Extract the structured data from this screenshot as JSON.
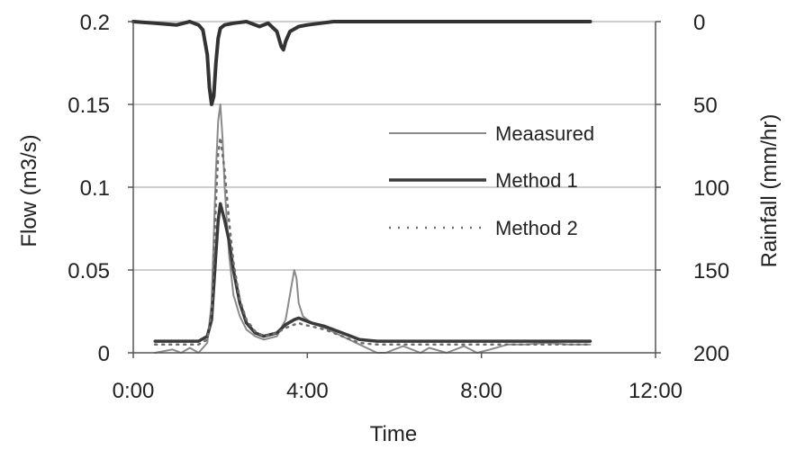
{
  "chart_data": {
    "type": "line",
    "title": "",
    "xlabel": "Time",
    "ylabel_left": "Flow (m3/s)",
    "ylabel_right": "Rainfall (mm/hr)",
    "x_ticks": [
      "0:00",
      "4:00",
      "8:00",
      "12:00"
    ],
    "x_ticks_hours": [
      0,
      4,
      8,
      12
    ],
    "xlim_hours": [
      0,
      12
    ],
    "y_left_ticks": [
      "0",
      "0.05",
      "0.1",
      "0.15",
      "0.2"
    ],
    "y_left_tick_values": [
      0,
      0.05,
      0.1,
      0.15,
      0.2
    ],
    "ylim_left": [
      0,
      0.2
    ],
    "y_right_ticks": [
      "0",
      "50",
      "100",
      "150",
      "200"
    ],
    "y_right_tick_values": [
      0,
      50,
      100,
      150,
      200
    ],
    "ylim_right": [
      0,
      200
    ],
    "y_right_inverted": true,
    "grid": "horizontal",
    "legend_placement": "center-right",
    "colors": {
      "measured": "#8a8a8a",
      "method1": "#3a3a3a",
      "method2": "#6e6e6e",
      "rainfall": "#333333",
      "grid": "#bdbdbd",
      "axis": "#555555"
    },
    "series": [
      {
        "name": "Meaasured",
        "axis": "left",
        "style": "thin",
        "x": [
          0.5,
          0.9,
          1.1,
          1.3,
          1.5,
          1.7,
          1.8,
          1.9,
          1.95,
          2.0,
          2.05,
          2.1,
          2.2,
          2.3,
          2.45,
          2.6,
          2.8,
          3.0,
          3.3,
          3.5,
          3.6,
          3.7,
          3.75,
          3.8,
          3.9,
          4.1,
          4.4,
          4.8,
          5.2,
          5.6,
          5.8,
          6.2,
          6.6,
          6.8,
          7.2,
          7.6,
          7.9,
          8.2,
          8.6,
          9.0,
          9.5,
          10.0,
          10.5
        ],
        "y": [
          0.0,
          0.002,
          0.0,
          0.003,
          0.0,
          0.006,
          0.03,
          0.11,
          0.14,
          0.15,
          0.13,
          0.1,
          0.06,
          0.035,
          0.022,
          0.014,
          0.01,
          0.008,
          0.01,
          0.02,
          0.035,
          0.05,
          0.045,
          0.03,
          0.022,
          0.018,
          0.015,
          0.01,
          0.005,
          0.0,
          0.0,
          0.004,
          0.0,
          0.003,
          0.0,
          0.004,
          0.0,
          0.002,
          0.005,
          0.005,
          0.006,
          0.005,
          0.005
        ]
      },
      {
        "name": "Method 1",
        "axis": "left",
        "style": "thick",
        "x": [
          0.5,
          1.0,
          1.5,
          1.7,
          1.8,
          1.9,
          1.95,
          2.0,
          2.05,
          2.1,
          2.2,
          2.3,
          2.45,
          2.6,
          2.8,
          3.0,
          3.3,
          3.5,
          3.7,
          3.8,
          3.9,
          4.1,
          4.4,
          4.8,
          5.2,
          5.6,
          6.0,
          7.0,
          8.0,
          9.0,
          10.0,
          10.5
        ],
        "y": [
          0.007,
          0.007,
          0.007,
          0.01,
          0.02,
          0.06,
          0.08,
          0.09,
          0.085,
          0.08,
          0.068,
          0.05,
          0.03,
          0.018,
          0.012,
          0.01,
          0.012,
          0.017,
          0.02,
          0.021,
          0.02,
          0.018,
          0.016,
          0.012,
          0.008,
          0.007,
          0.007,
          0.007,
          0.007,
          0.007,
          0.007,
          0.007
        ]
      },
      {
        "name": "Method 2",
        "axis": "left",
        "style": "dotted",
        "x": [
          0.5,
          1.0,
          1.5,
          1.7,
          1.8,
          1.9,
          1.95,
          2.0,
          2.05,
          2.1,
          2.2,
          2.3,
          2.45,
          2.6,
          2.8,
          3.0,
          3.3,
          3.5,
          3.7,
          3.8,
          3.9,
          4.1,
          4.4,
          4.8,
          5.2,
          5.6,
          6.0,
          7.0,
          8.0,
          9.0,
          10.0,
          10.5
        ],
        "y": [
          0.005,
          0.005,
          0.005,
          0.008,
          0.025,
          0.09,
          0.12,
          0.13,
          0.12,
          0.11,
          0.08,
          0.055,
          0.032,
          0.02,
          0.013,
          0.01,
          0.012,
          0.015,
          0.017,
          0.018,
          0.017,
          0.016,
          0.014,
          0.01,
          0.006,
          0.005,
          0.005,
          0.005,
          0.005,
          0.005,
          0.005,
          0.005
        ]
      },
      {
        "name": "",
        "axis": "right",
        "style": "rainfall",
        "x": [
          0.0,
          0.5,
          1.0,
          1.3,
          1.5,
          1.6,
          1.7,
          1.75,
          1.8,
          1.85,
          1.9,
          1.95,
          2.0,
          2.1,
          2.3,
          2.6,
          2.9,
          3.1,
          3.3,
          3.4,
          3.45,
          3.5,
          3.6,
          3.8,
          4.0,
          4.3,
          4.6,
          5.0,
          6.0,
          7.0,
          8.0,
          9.0,
          10.0,
          10.5
        ],
        "y": [
          0,
          1,
          2,
          0,
          2,
          5,
          20,
          40,
          50,
          45,
          25,
          10,
          4,
          2,
          1,
          0,
          3,
          1,
          6,
          15,
          17,
          12,
          6,
          3,
          2,
          1,
          0,
          0,
          0,
          0,
          0,
          0,
          0,
          0
        ]
      }
    ]
  }
}
